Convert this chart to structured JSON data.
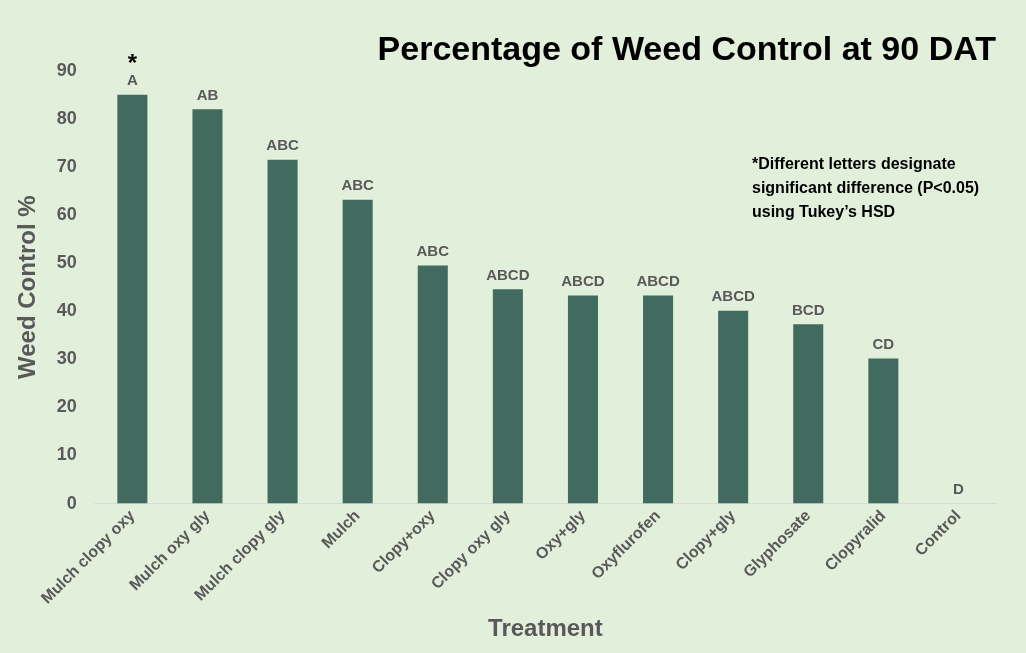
{
  "chart_data": {
    "type": "bar",
    "title": "Percentage of Weed Control at 90 DAT",
    "xlabel": "Treatment",
    "ylabel": "Weed Control %",
    "categories": [
      "Mulch clopy oxy",
      "Mulch oxy gly",
      "Mulch clopy gly",
      "Mulch",
      "Clopy+oxy",
      "Clopy oxy gly",
      "Oxy+gly",
      "Oxyflurofen",
      "Clopy+gly",
      "Glyphosate",
      "Clopyralid",
      "Control"
    ],
    "values": [
      85,
      82,
      71.5,
      63.2,
      49.5,
      44.6,
      43.3,
      43.3,
      40.1,
      37.3,
      30.2,
      0
    ],
    "color": "#416b5f",
    "ylim": [
      0,
      90
    ],
    "yticks": [
      0,
      10,
      20,
      30,
      40,
      50,
      60,
      70,
      80,
      90
    ],
    "grid": false,
    "legend": false,
    "annotations": [
      {
        "text": "A",
        "x": "Mulch clopy oxy",
        "y": 85
      },
      {
        "text": "*",
        "x": "Mulch clopy oxy",
        "y": 85
      },
      {
        "text": "AB",
        "x": "Mulch oxy gly",
        "y": 82
      },
      {
        "text": "ABC",
        "x": "Mulch clopy gly",
        "y": 71.5
      },
      {
        "text": "ABC",
        "x": "Mulch",
        "y": 63.2
      },
      {
        "text": "ABC",
        "x": "Clopy+oxy",
        "y": 49.5
      },
      {
        "text": "ABCD",
        "x": "Clopy oxy gly",
        "y": 44.6
      },
      {
        "text": "ABCD",
        "x": "Oxy+gly",
        "y": 43.3
      },
      {
        "text": "ABCD",
        "x": "Oxyflurofen",
        "y": 43.3
      },
      {
        "text": "ABCD",
        "x": "Clopy+gly",
        "y": 40.1
      },
      {
        "text": "BCD",
        "x": "Glyphosate",
        "y": 37.3
      },
      {
        "text": "CD",
        "x": "Clopyralid",
        "y": 30.2
      },
      {
        "text": "D",
        "x": "Control",
        "y": 0
      },
      "*Different letters designate significant difference (P<0.05) using Tukey’s HSD"
    ]
  }
}
